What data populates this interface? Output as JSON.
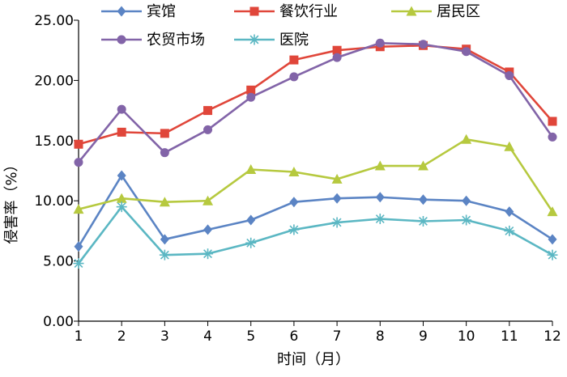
{
  "chart_data": {
    "type": "line",
    "title": "",
    "xlabel": "时间（月）",
    "ylabel": "侵害率（%）",
    "x": [
      1,
      2,
      3,
      4,
      5,
      6,
      7,
      8,
      9,
      10,
      11,
      12
    ],
    "ylim": [
      0,
      25
    ],
    "yticks": [
      "0.00",
      "5.00",
      "10.00",
      "15.00",
      "20.00",
      "25.00"
    ],
    "xticks": [
      "1",
      "2",
      "3",
      "4",
      "5",
      "6",
      "7",
      "8",
      "9",
      "10",
      "11",
      "12"
    ],
    "grid": false,
    "legend_position": "top",
    "series": [
      {
        "name": "宾馆",
        "color": "#5b84c4",
        "marker": "diamond",
        "values": [
          6.2,
          12.1,
          6.8,
          7.6,
          8.4,
          9.9,
          10.2,
          10.3,
          10.1,
          10.0,
          9.1,
          6.8
        ]
      },
      {
        "name": "餐饮行业",
        "color": "#e0463a",
        "marker": "square",
        "values": [
          14.7,
          15.7,
          15.6,
          17.5,
          19.2,
          21.7,
          22.5,
          22.8,
          22.9,
          22.6,
          20.7,
          16.6
        ]
      },
      {
        "name": "居民区",
        "color": "#b6c93f",
        "marker": "triangle",
        "values": [
          9.3,
          10.2,
          9.9,
          10.0,
          12.6,
          12.4,
          11.8,
          12.9,
          12.9,
          15.1,
          14.5,
          9.1
        ]
      },
      {
        "name": "农贸市场",
        "color": "#8264a8",
        "marker": "circle",
        "values": [
          13.2,
          17.6,
          14.0,
          15.9,
          18.6,
          20.3,
          21.9,
          23.1,
          23.0,
          22.4,
          20.4,
          15.3
        ]
      },
      {
        "name": "医院",
        "color": "#5bb7c3",
        "marker": "asterisk",
        "values": [
          4.8,
          9.5,
          5.5,
          5.6,
          6.5,
          7.6,
          8.2,
          8.5,
          8.3,
          8.4,
          7.5,
          5.5
        ]
      }
    ]
  }
}
